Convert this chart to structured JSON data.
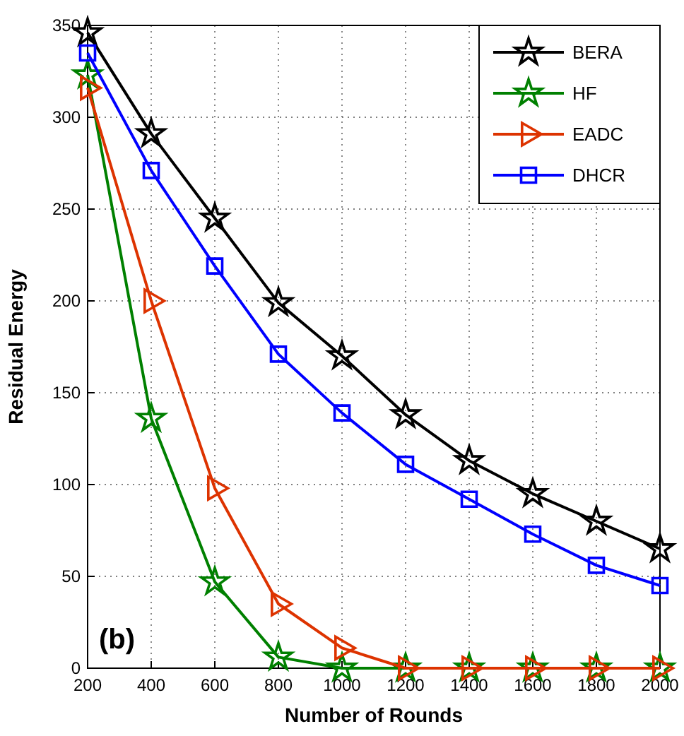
{
  "chart_data": {
    "type": "line",
    "xlabel": "Number of Rounds",
    "ylabel": "Residual Energy",
    "annotations": [
      "(b)"
    ],
    "x": [
      200,
      400,
      600,
      800,
      1000,
      1200,
      1400,
      1600,
      1800,
      2000
    ],
    "series": [
      {
        "name": "BERA",
        "color": "#000000",
        "marker": "star",
        "values": [
          346,
          291,
          245,
          199,
          170,
          138,
          113,
          95,
          80,
          65
        ]
      },
      {
        "name": "HF",
        "color": "#008000",
        "marker": "star",
        "values": [
          323,
          136,
          47,
          6,
          0,
          0,
          0,
          0,
          0,
          0
        ]
      },
      {
        "name": "EADC",
        "color": "#dd3300",
        "marker": "triangle",
        "values": [
          316,
          200,
          98,
          35,
          11,
          0,
          0,
          0,
          0,
          0
        ]
      },
      {
        "name": "DHCR",
        "color": "#0000ff",
        "marker": "square",
        "values": [
          335,
          271,
          219,
          171,
          139,
          111,
          92,
          73,
          56,
          45
        ]
      }
    ],
    "xlim": [
      200,
      2000
    ],
    "xticks": [
      200,
      400,
      600,
      800,
      1000,
      1200,
      1400,
      1600,
      1800,
      2000
    ],
    "ylim": [
      0,
      350
    ],
    "yticks": [
      0,
      50,
      100,
      150,
      200,
      250,
      300,
      350
    ],
    "grid": true,
    "legend": "top right",
    "line_style": "solid"
  }
}
